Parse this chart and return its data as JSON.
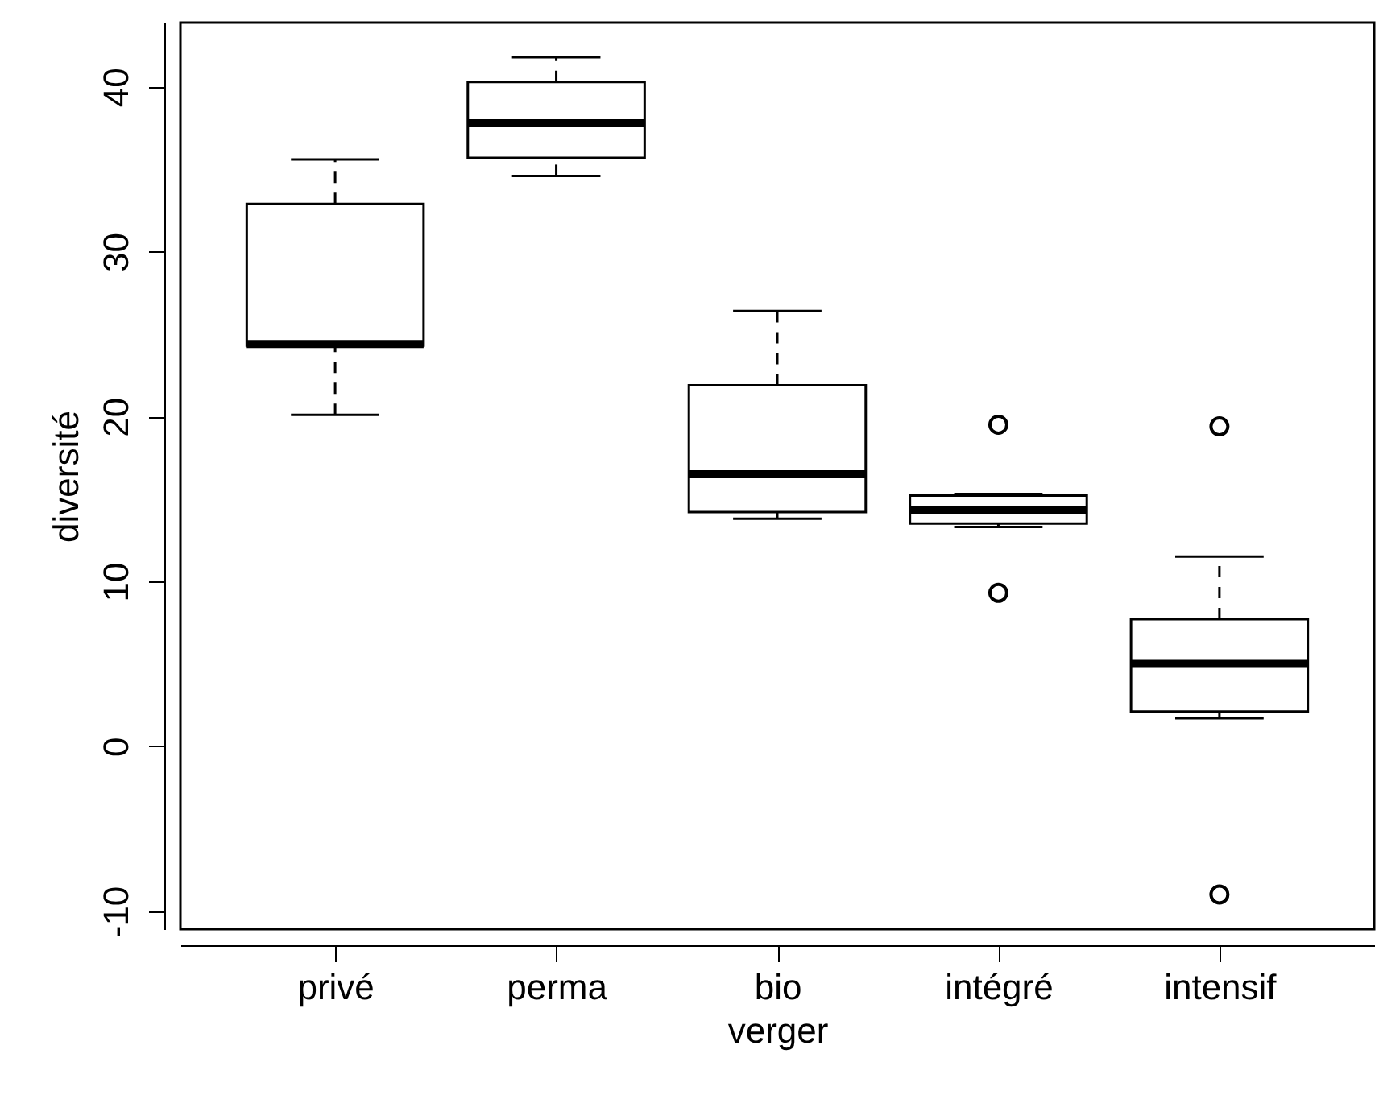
{
  "chart_data": {
    "type": "box",
    "xlabel": "verger",
    "ylabel": "diversité",
    "categories": [
      "privé",
      "perma",
      "bio",
      "intégré",
      "intensif"
    ],
    "boxes": [
      {
        "low": 20.1,
        "q1": 24.3,
        "median": 24.4,
        "q3": 32.9,
        "high": 35.6
      },
      {
        "low": 34.6,
        "q1": 35.7,
        "median": 37.8,
        "q3": 40.3,
        "high": 41.8
      },
      {
        "low": 13.8,
        "q1": 14.2,
        "median": 16.5,
        "q3": 21.9,
        "high": 26.4
      },
      {
        "low": 13.3,
        "q1": 13.5,
        "median": 14.3,
        "q3": 15.2,
        "high": 15.3,
        "outliers": [
          19.5,
          9.3
        ]
      },
      {
        "low": 1.7,
        "q1": 2.1,
        "median": 5.0,
        "q3": 7.7,
        "high": 11.5,
        "outliers": [
          19.4,
          -9.0
        ]
      }
    ],
    "color": "#000000",
    "ylim": [
      -11.1,
      43.9
    ],
    "yticks": [
      -10,
      0,
      10,
      20,
      30,
      40
    ],
    "grid": false
  }
}
